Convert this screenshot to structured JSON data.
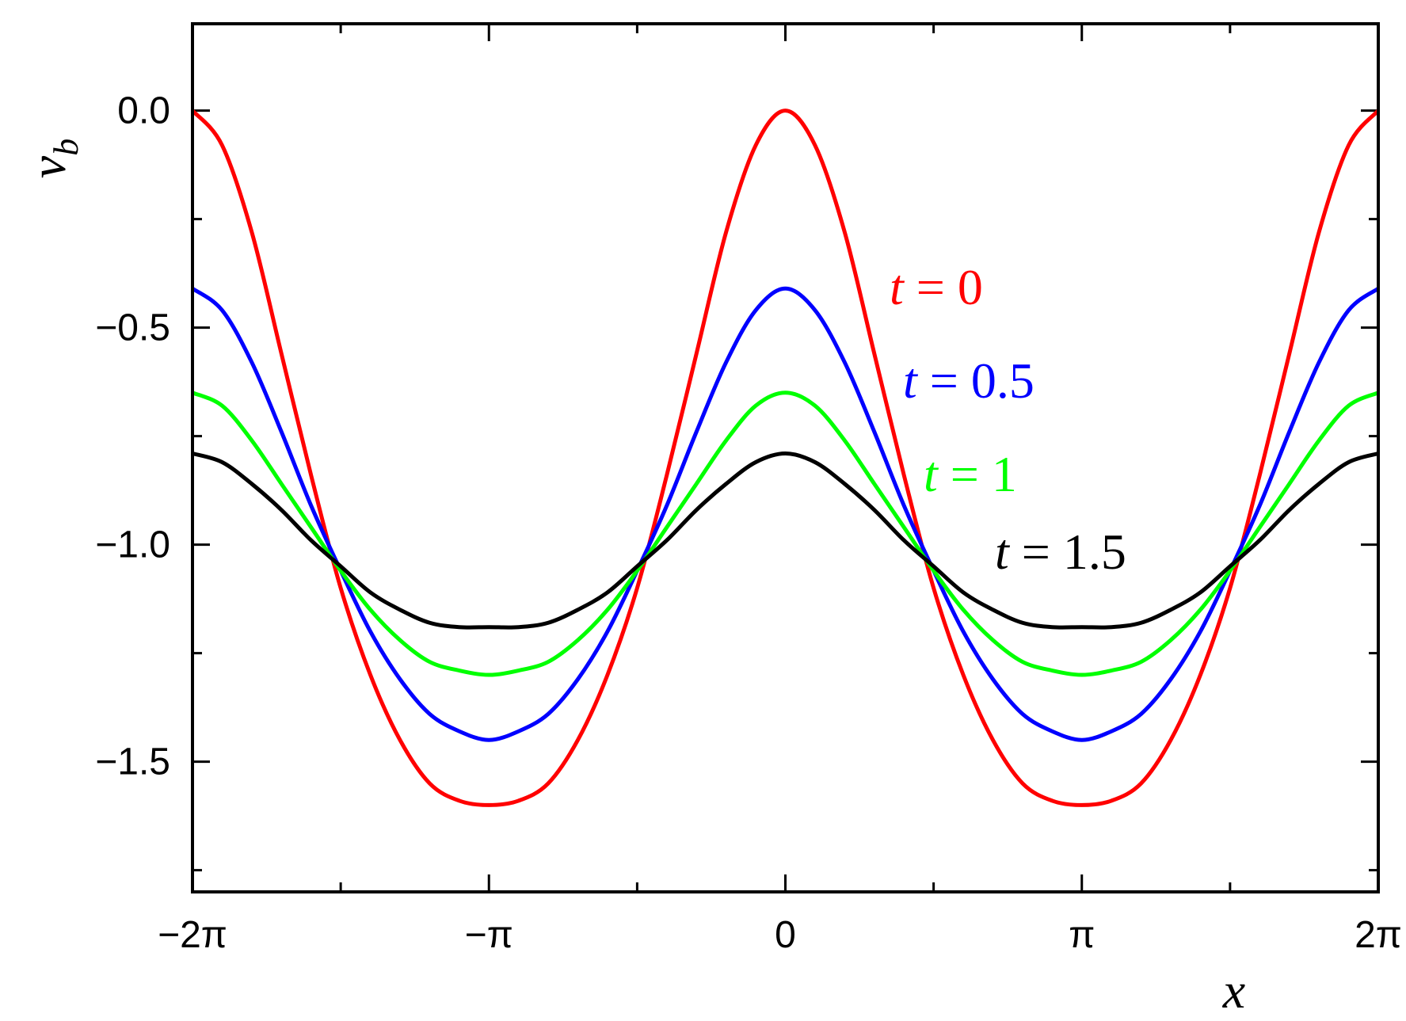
{
  "chart_data": {
    "type": "line",
    "xlabel": "x",
    "ylabel": "v",
    "ylabel_subscript": "b",
    "xlim": [
      -6.283185307179586,
      6.283185307179586
    ],
    "ylim": [
      -1.8,
      0.2
    ],
    "x_ticks": [
      {
        "value": -6.283185307179586,
        "label": "−2π"
      },
      {
        "value": -3.141592653589793,
        "label": "−π"
      },
      {
        "value": 0,
        "label": "0"
      },
      {
        "value": 3.141592653589793,
        "label": "π"
      },
      {
        "value": 6.283185307179586,
        "label": "2π"
      }
    ],
    "x_minor_ticks": [
      -4.71238898038469,
      -1.5707963267948966,
      1.5707963267948966,
      4.71238898038469
    ],
    "y_ticks": [
      {
        "value": 0,
        "label": "0.0"
      },
      {
        "value": -0.5,
        "label": "−0.5"
      },
      {
        "value": -1.0,
        "label": "−1.0"
      },
      {
        "value": -1.5,
        "label": "−1.5"
      }
    ],
    "y_minor_ticks": [
      -0.25,
      -0.75,
      -1.25,
      -1.75
    ],
    "grid": false,
    "x": [
      -6.283185307179586,
      -5.969026041820607,
      -5.654866776461628,
      -5.340707511102648,
      -5.026548245743669,
      -4.71238898038469,
      -4.39822971502571,
      -4.084070449666731,
      -3.7699111843077517,
      -3.4557519189487724,
      -3.141592653589793,
      -2.827433388230814,
      -2.5132741228718345,
      -2.199114857512855,
      -1.8849555921538759,
      -1.5707963267948966,
      -1.2566370614359172,
      -0.9424777960769379,
      -0.6283185307179586,
      -0.3141592653589793,
      0,
      0.3141592653589793,
      0.6283185307179586,
      0.9424777960769379,
      1.2566370614359172,
      1.5707963267948966,
      1.8849555921538759,
      2.199114857512855,
      2.5132741228718345,
      2.827433388230814,
      3.141592653589793,
      3.4557519189487724,
      3.7699111843077517,
      4.084070449666731,
      4.39822971502571,
      4.71238898038469,
      5.026548245743669,
      5.340707511102648,
      5.654866776461628,
      5.969026041820607,
      6.283185307179586
    ],
    "series": [
      {
        "name": "t = 0",
        "label_var": "t",
        "label_rest": " = 0",
        "color": "#ff0000",
        "values": [
          0.0,
          -0.08,
          -0.28,
          -0.56,
          -0.84,
          -1.1,
          -1.3,
          -1.45,
          -1.55,
          -1.59,
          -1.6,
          -1.59,
          -1.55,
          -1.45,
          -1.3,
          -1.1,
          -0.84,
          -0.56,
          -0.28,
          -0.08,
          0.0,
          -0.08,
          -0.28,
          -0.56,
          -0.84,
          -1.1,
          -1.3,
          -1.45,
          -1.55,
          -1.59,
          -1.6,
          -1.59,
          -1.55,
          -1.45,
          -1.3,
          -1.1,
          -0.84,
          -0.56,
          -0.28,
          -0.08,
          0.0
        ]
      },
      {
        "name": "t = 0.5",
        "label_var": "t",
        "label_rest": " = 0.5",
        "color": "#0000ff",
        "values": [
          -0.41,
          -0.46,
          -0.58,
          -0.74,
          -0.91,
          -1.06,
          -1.2,
          -1.31,
          -1.39,
          -1.43,
          -1.45,
          -1.43,
          -1.39,
          -1.31,
          -1.2,
          -1.06,
          -0.91,
          -0.74,
          -0.58,
          -0.46,
          -0.41,
          -0.46,
          -0.58,
          -0.74,
          -0.91,
          -1.06,
          -1.2,
          -1.31,
          -1.39,
          -1.43,
          -1.45,
          -1.43,
          -1.39,
          -1.31,
          -1.2,
          -1.06,
          -0.91,
          -0.74,
          -0.58,
          -0.46,
          -0.41
        ]
      },
      {
        "name": "t = 1",
        "label_var": "t",
        "label_rest": " = 1",
        "color": "#00ff00",
        "values": [
          -0.65,
          -0.68,
          -0.76,
          -0.86,
          -0.96,
          -1.06,
          -1.15,
          -1.22,
          -1.27,
          -1.29,
          -1.3,
          -1.29,
          -1.27,
          -1.22,
          -1.15,
          -1.06,
          -0.96,
          -0.86,
          -0.76,
          -0.68,
          -0.65,
          -0.68,
          -0.76,
          -0.86,
          -0.96,
          -1.06,
          -1.15,
          -1.22,
          -1.27,
          -1.29,
          -1.3,
          -1.29,
          -1.27,
          -1.22,
          -1.15,
          -1.06,
          -0.96,
          -0.86,
          -0.76,
          -0.68,
          -0.65
        ]
      },
      {
        "name": "t = 1.5",
        "label_var": "t",
        "label_rest": " = 1.5",
        "color": "#000000",
        "values": [
          -0.79,
          -0.81,
          -0.86,
          -0.92,
          -0.99,
          -1.05,
          -1.11,
          -1.15,
          -1.18,
          -1.19,
          -1.19,
          -1.19,
          -1.18,
          -1.15,
          -1.11,
          -1.05,
          -0.99,
          -0.92,
          -0.86,
          -0.81,
          -0.79,
          -0.81,
          -0.86,
          -0.92,
          -0.99,
          -1.05,
          -1.11,
          -1.15,
          -1.18,
          -1.19,
          -1.19,
          -1.19,
          -1.18,
          -1.15,
          -1.11,
          -1.05,
          -0.99,
          -0.92,
          -0.86,
          -0.81,
          -0.79
        ]
      }
    ]
  }
}
